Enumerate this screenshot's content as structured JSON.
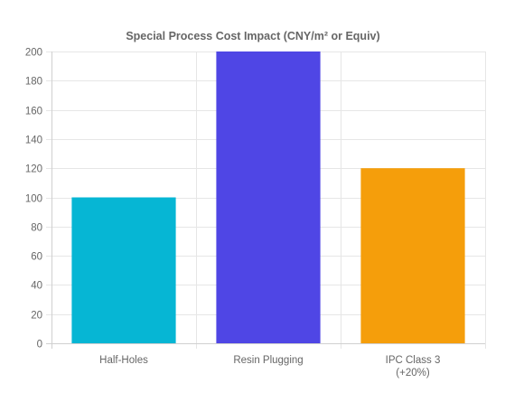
{
  "chart_data": {
    "type": "bar",
    "title": "Special Process Cost Impact (CNY/m² or Equiv)",
    "categories": [
      [
        "Half-Holes"
      ],
      [
        "Resin Plugging"
      ],
      [
        "IPC Class 3",
        "(+20%)"
      ]
    ],
    "values": [
      100,
      200,
      120
    ],
    "colors": [
      "#06b6d4",
      "#4f46e5",
      "#f59e0b"
    ],
    "ylim": [
      0,
      200
    ],
    "yticks": [
      0,
      20,
      40,
      60,
      80,
      100,
      120,
      140,
      160,
      180,
      200
    ],
    "grid": true,
    "legend": "none"
  }
}
